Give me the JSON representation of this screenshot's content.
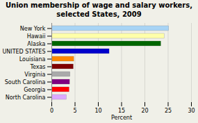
{
  "chart_data": {
    "type": "bar",
    "orientation": "horizontal",
    "title": "Union membership of wage and salary workers,\nselected States, 2009",
    "categories": [
      "North Carolina",
      "Georgia",
      "South Carolina",
      "Virginia",
      "Texas",
      "Louisiana",
      "UNITED STATES",
      "Alaska",
      "Hawaii",
      "New York"
    ],
    "values": [
      3.2,
      3.8,
      3.9,
      4.0,
      4.7,
      4.8,
      12.4,
      23.5,
      24.2,
      25.2
    ],
    "colors": [
      "#ddaaff",
      "#ff0000",
      "#800080",
      "#aaaaaa",
      "#800000",
      "#ff8800",
      "#0000cc",
      "#006600",
      "#ffffaa",
      "#a8d4f5"
    ],
    "xlabel": "Percent",
    "xlim": [
      0,
      30
    ],
    "xticks": [
      0,
      5,
      10,
      15,
      20,
      25,
      30
    ],
    "grid": true
  }
}
